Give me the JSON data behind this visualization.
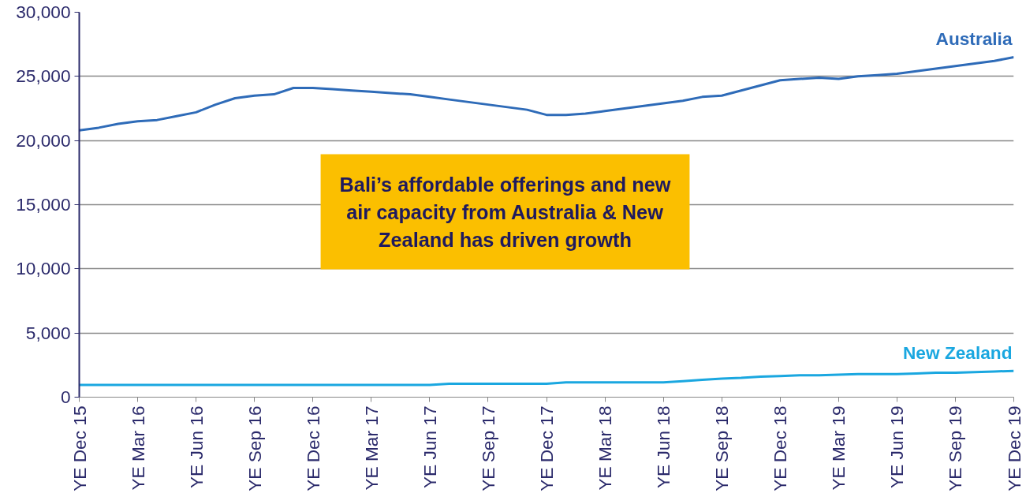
{
  "chart_data": {
    "type": "line",
    "categories": [
      "YE Dec 15",
      null,
      null,
      "YE Mar 16",
      null,
      null,
      "YE Jun 16",
      null,
      null,
      "YE Sep 16",
      null,
      null,
      "YE Dec 16",
      null,
      null,
      "YE Mar 17",
      null,
      null,
      "YE Jun 17",
      null,
      null,
      "YE Sep 17",
      null,
      null,
      "YE Dec 17",
      null,
      null,
      "YE Mar 18",
      null,
      null,
      "YE Jun 18",
      null,
      null,
      "YE Sep 18",
      null,
      null,
      "YE Dec 18",
      null,
      null,
      "YE Mar 19",
      null,
      null,
      "YE Jun 19",
      null,
      null,
      "YE Sep 19",
      null,
      null,
      "YE Dec 19"
    ],
    "series": [
      {
        "name": "Australia",
        "color": "#2e6bb8",
        "values": [
          20800,
          21000,
          21300,
          21500,
          21600,
          21900,
          22200,
          22800,
          23300,
          23500,
          23600,
          24100,
          24100,
          24000,
          23900,
          23800,
          23700,
          23600,
          23400,
          23200,
          23000,
          22800,
          22600,
          22400,
          22000,
          22000,
          22100,
          22300,
          22500,
          22700,
          22900,
          23100,
          23400,
          23500,
          23900,
          24300,
          24700,
          24800,
          24900,
          24800,
          25000,
          25100,
          25200,
          25400,
          25600,
          25800,
          26000,
          26200,
          26500
        ]
      },
      {
        "name": "New Zealand",
        "color": "#1aa7e0",
        "values": [
          950,
          950,
          950,
          950,
          950,
          950,
          950,
          950,
          950,
          950,
          950,
          950,
          950,
          950,
          950,
          950,
          950,
          950,
          950,
          1050,
          1050,
          1050,
          1050,
          1050,
          1050,
          1150,
          1150,
          1150,
          1150,
          1150,
          1150,
          1250,
          1350,
          1450,
          1500,
          1600,
          1650,
          1700,
          1700,
          1750,
          1800,
          1800,
          1800,
          1850,
          1900,
          1900,
          1950,
          2000,
          2050
        ]
      }
    ],
    "ylim": [
      0,
      30000
    ],
    "yticks": [
      0,
      {
        "value": 5000,
        "label": "5,000"
      },
      {
        "value": 10000,
        "label": "10,000"
      },
      {
        "value": 15000,
        "label": "15,000"
      },
      {
        "value": 20000,
        "label": "20,000"
      },
      {
        "value": 25000,
        "label": "25,000"
      },
      {
        "value": 30000,
        "label": "30,000"
      }
    ],
    "grid": "y",
    "marker": "none",
    "line_style": "solid",
    "annotations": [
      "Bali’s affordable offerings and new air capacity from Australia & New Zealand has driven growth"
    ]
  }
}
